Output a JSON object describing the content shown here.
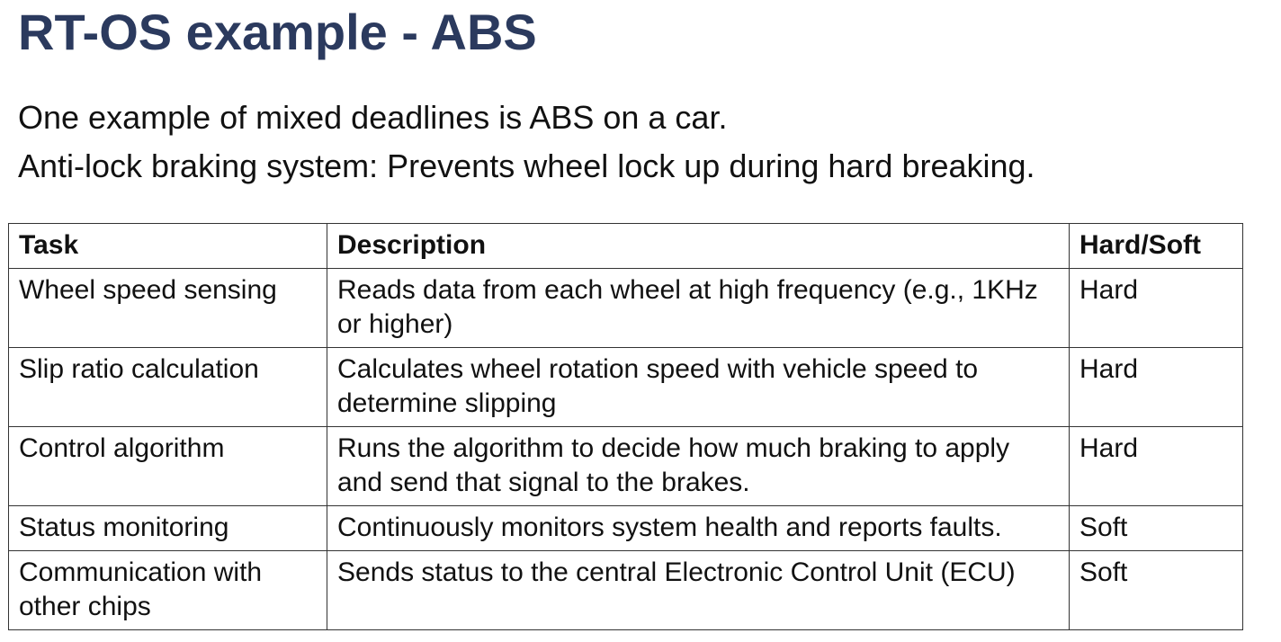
{
  "slide": {
    "title": "RT-OS example - ABS",
    "intro_lines": [
      "One example of mixed deadlines is ABS on a car.",
      "Anti-lock braking system: Prevents wheel lock up during hard breaking."
    ]
  },
  "table": {
    "headers": [
      "Task",
      "Description",
      "Hard/Soft"
    ],
    "rows": [
      {
        "task": "Wheel speed sensing",
        "description": "Reads data from each wheel at high frequency (e.g., 1KHz or higher)",
        "type": "Hard"
      },
      {
        "task": "Slip ratio calculation",
        "description": "Calculates wheel rotation speed with vehicle speed to determine slipping",
        "type": "Hard"
      },
      {
        "task": "Control algorithm",
        "description": "Runs the algorithm to decide how much braking to apply and send that signal to the brakes.",
        "type": "Hard"
      },
      {
        "task": "Status monitoring",
        "description": "Continuously monitors system health and reports faults.",
        "type": "Soft"
      },
      {
        "task": "Communication with other chips",
        "description": "Sends status to the central Electronic Control Unit (ECU)",
        "type": "Soft"
      }
    ]
  },
  "colors": {
    "title": "#2b3a5e",
    "text": "#111111",
    "border": "#333333"
  }
}
